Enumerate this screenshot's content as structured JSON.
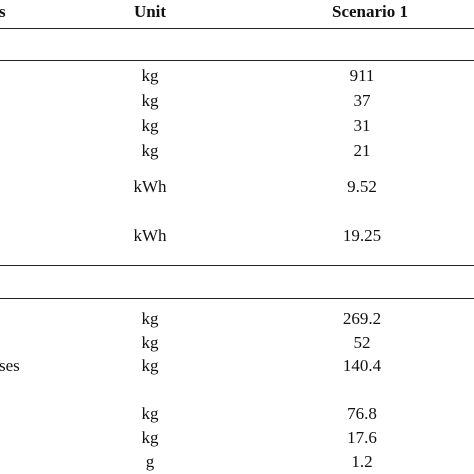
{
  "table": {
    "header": [
      "s",
      "Unit",
      "Scenario 1"
    ],
    "rows": [
      {
        "unit": "kg",
        "value": 911
      },
      {
        "unit": "kg",
        "value": 37
      },
      {
        "unit": "kg",
        "value": 31
      },
      {
        "unit": "kg",
        "value": 21
      },
      {
        "unit": "kWh",
        "value": 9.52
      },
      {
        "unit": "kWh",
        "value": 19.25
      },
      {
        "unit": "kg",
        "value": 269.2
      },
      {
        "unit": "kg",
        "value": 52
      },
      {
        "label": "ses",
        "unit": "kg",
        "value": 140.4
      },
      {
        "unit": "kg",
        "value": 76.8
      },
      {
        "unit": "kg",
        "value": 17.6
      },
      {
        "unit": "g",
        "value": 1.2
      }
    ]
  }
}
